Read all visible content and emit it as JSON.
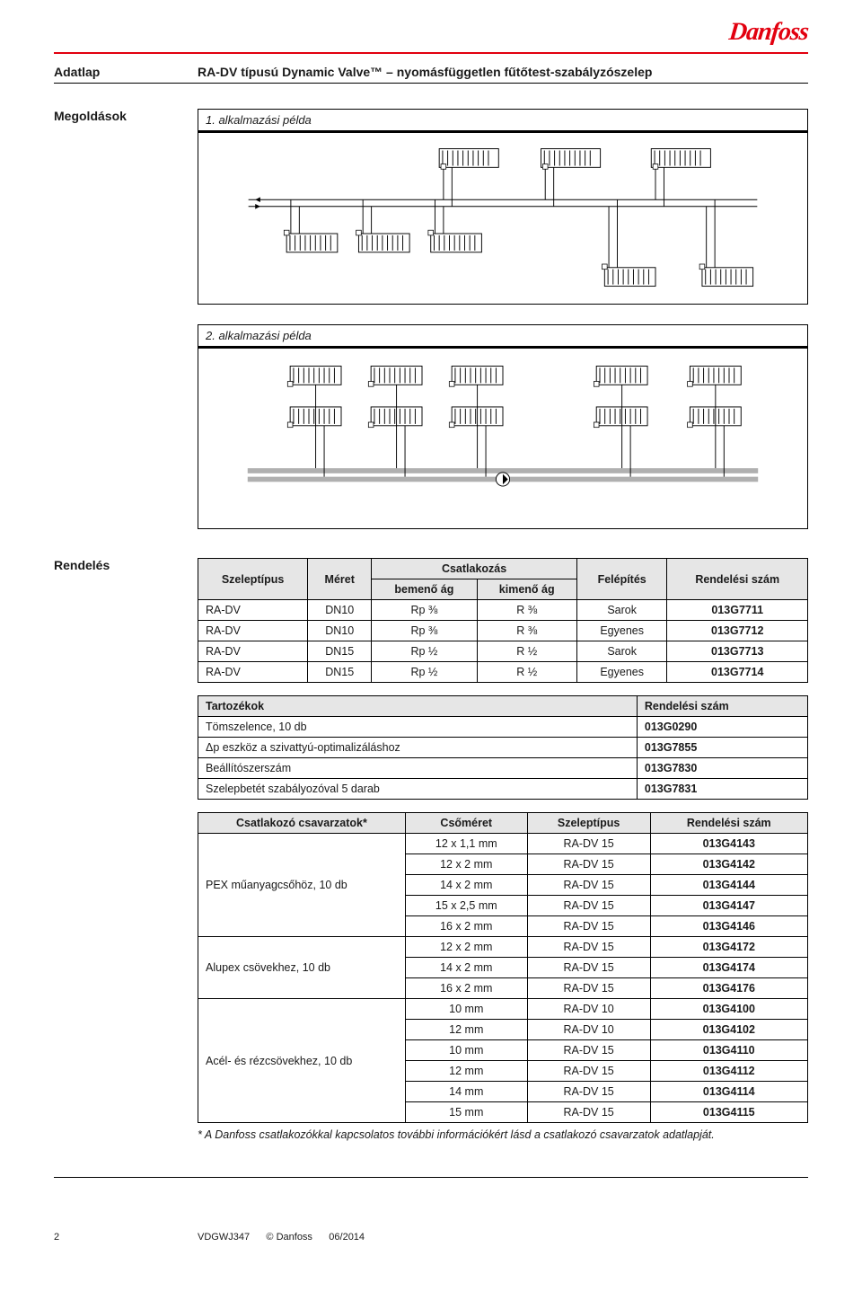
{
  "logo_text": "Danfoss",
  "header": {
    "doc_type": "Adatlap",
    "doc_title": "RA-DV típusú Dynamic Valve™ – nyomásfüggetlen fűtőtest-szabályzószelep"
  },
  "section_solutions": "Megoldások",
  "caption1": "1. alkalmazási példa",
  "caption2": "2. alkalmazási példa",
  "section_order": "Rendelés",
  "table1": {
    "headers": {
      "type": "Szeleptípus",
      "size": "Méret",
      "conn": "Csatlakozás",
      "conn_in": "bemenő ág",
      "conn_out": "kimenő ág",
      "build": "Felépítés",
      "order": "Rendelési szám"
    },
    "rows": [
      [
        "RA-DV",
        "DN10",
        "Rp ⅜",
        "R ⅜",
        "Sarok",
        "013G7711"
      ],
      [
        "RA-DV",
        "DN10",
        "Rp ⅜",
        "R ⅜",
        "Egyenes",
        "013G7712"
      ],
      [
        "RA-DV",
        "DN15",
        "Rp ½",
        "R ½",
        "Sarok",
        "013G7713"
      ],
      [
        "RA-DV",
        "DN15",
        "Rp ½",
        "R ½",
        "Egyenes",
        "013G7714"
      ]
    ]
  },
  "table2": {
    "headers": {
      "acc": "Tartozékok",
      "order": "Rendelési szám"
    },
    "rows": [
      [
        "Tömszelence, 10 db",
        "013G0290"
      ],
      [
        "Δp eszköz a szivattyú-optimalizáláshoz",
        "013G7855"
      ],
      [
        "Beállítószerszám",
        "013G7830"
      ],
      [
        "Szelepbetét szabályozóval 5 darab",
        "013G7831"
      ]
    ]
  },
  "table3": {
    "headers": {
      "conn": "Csatlakozó csavarzatok*",
      "pipe": "Csőméret",
      "type": "Szeleptípus",
      "order": "Rendelési szám"
    },
    "groups": [
      {
        "label": "PEX műanyagcsőhöz, 10 db",
        "rows": [
          [
            "12 x 1,1 mm",
            "RA-DV 15",
            "013G4143"
          ],
          [
            "12 x 2 mm",
            "RA-DV 15",
            "013G4142"
          ],
          [
            "14 x 2 mm",
            "RA-DV 15",
            "013G4144"
          ],
          [
            "15 x 2,5 mm",
            "RA-DV 15",
            "013G4147"
          ],
          [
            "16 x 2 mm",
            "RA-DV 15",
            "013G4146"
          ]
        ]
      },
      {
        "label": "Alupex csövekhez, 10 db",
        "rows": [
          [
            "12 x 2 mm",
            "RA-DV 15",
            "013G4172"
          ],
          [
            "14 x 2 mm",
            "RA-DV 15",
            "013G4174"
          ],
          [
            "16 x 2 mm",
            "RA-DV 15",
            "013G4176"
          ]
        ]
      },
      {
        "label": "Acél- és rézcsövekhez, 10 db",
        "rows": [
          [
            "10 mm",
            "RA-DV 10",
            "013G4100"
          ],
          [
            "12 mm",
            "RA-DV 10",
            "013G4102"
          ],
          [
            "10 mm",
            "RA-DV 15",
            "013G4110"
          ],
          [
            "12 mm",
            "RA-DV 15",
            "013G4112"
          ],
          [
            "14 mm",
            "RA-DV 15",
            "013G4114"
          ],
          [
            "15 mm",
            "RA-DV 15",
            "013G4115"
          ]
        ]
      }
    ]
  },
  "footnote": "*  A Danfoss csatlakozókkal kapcsolatos további információkért lásd a csatlakozó csavarzatok adatlapját.",
  "footer": {
    "page": "2",
    "code": "VDGWJ347",
    "copyright": "© Danfoss",
    "date": "06/2014"
  },
  "colors": {
    "brand_red": "#e2000f",
    "header_grey": "#e6e6e6",
    "pipe_grey": "#b0b0b0"
  }
}
